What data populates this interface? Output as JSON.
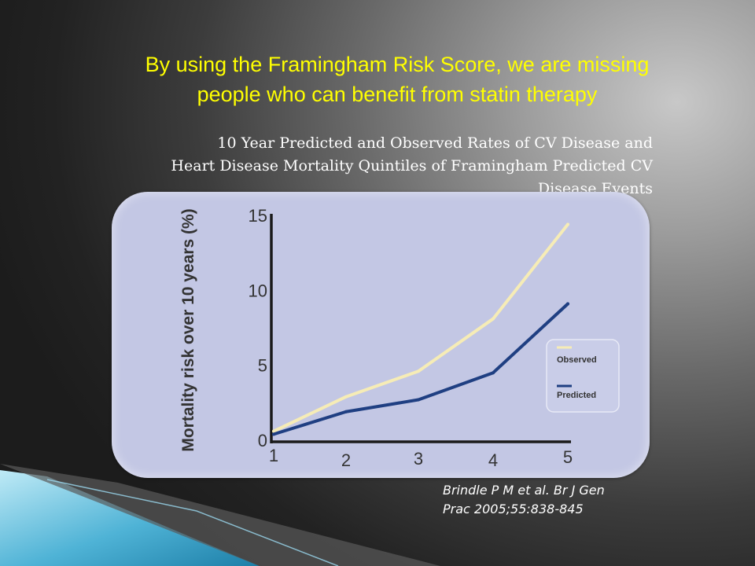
{
  "slide": {
    "headline_line1": "By using the Framingham Risk Score, we are missing",
    "headline_line2": "people who can benefit from statin therapy",
    "subtitle_line1": "10 Year Predicted and Observed Rates of CV Disease and",
    "subtitle_line2": "Heart Disease Mortality Quintiles of Framingham Predicted CV",
    "subtitle_line3": "Disease Events",
    "citation_line1": "Brindle P M et al. Br J Gen",
    "citation_line2": "Prac 2005;55:838-845"
  },
  "colors": {
    "headline": "#ffff00",
    "panel": "#c3c7e4",
    "observed": "#f6ecb6",
    "predicted": "#1f3f82",
    "axis": "#1a1a1a"
  },
  "chart_data": {
    "type": "line",
    "title": "",
    "xlabel": "",
    "ylabel": "Mortality risk over 10 years (%)",
    "x": [
      1,
      2,
      3,
      4,
      5
    ],
    "x_ticks": [
      "1",
      "2",
      "3",
      "4",
      "5"
    ],
    "y_ticks": [
      "0",
      "5",
      "10",
      "15"
    ],
    "xlim": [
      1,
      5
    ],
    "ylim": [
      0,
      15
    ],
    "grid": false,
    "legend_position": "right",
    "series": [
      {
        "name": "Observed",
        "values": [
          0.6,
          2.9,
          4.6,
          8.1,
          14.4
        ]
      },
      {
        "name": "Predicted",
        "values": [
          0.4,
          1.9,
          2.7,
          4.5,
          9.1
        ]
      }
    ]
  }
}
